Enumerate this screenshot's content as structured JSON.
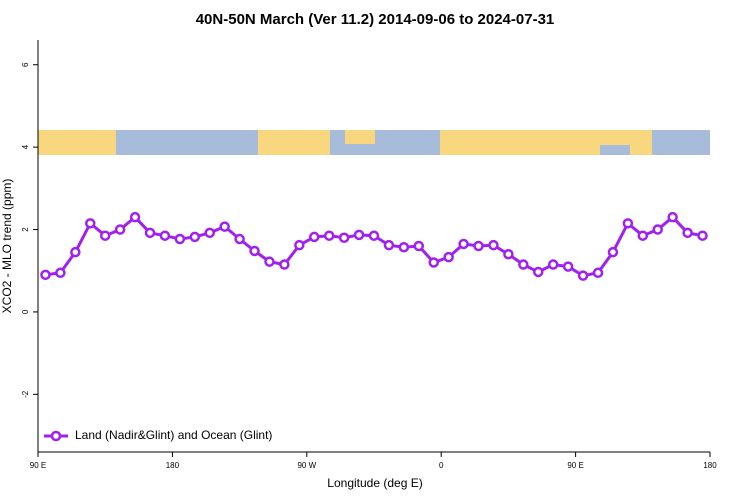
{
  "chart_data": {
    "type": "line",
    "title": "40N-50N March (Ver 11.2)   2014-09-06 to 2024-07-31",
    "x_label": "Longitude (deg E)",
    "y_label": "XCO2 - MLO trend (ppm)",
    "x": [
      95,
      105,
      115,
      125,
      135,
      145,
      155,
      165,
      175,
      185,
      195,
      205,
      215,
      225,
      235,
      245,
      255,
      265,
      275,
      285,
      295,
      305,
      315,
      325,
      335,
      345,
      355,
      365,
      375,
      385,
      395,
      405,
      415,
      425,
      435,
      445,
      455,
      465,
      475,
      485,
      495,
      505,
      515,
      525,
      535
    ],
    "series": [
      {
        "name": "Land (Nadir&Glint) and Ocean (Glint)",
        "color": "#a020f0",
        "values": [
          0.9,
          0.95,
          1.45,
          2.15,
          1.85,
          2.0,
          2.3,
          1.92,
          1.85,
          1.77,
          1.82,
          1.92,
          2.07,
          1.77,
          1.48,
          1.22,
          1.15,
          1.62,
          1.82,
          1.85,
          1.8,
          1.87,
          1.85,
          1.62,
          1.57,
          1.6,
          1.2,
          1.33,
          1.65,
          1.6,
          1.62,
          1.4,
          1.15,
          0.97,
          1.15,
          1.1,
          0.88,
          0.95,
          1.45,
          2.15,
          1.85,
          2.0,
          2.3,
          1.92,
          1.85
        ]
      }
    ],
    "xlim": [
      90,
      540
    ],
    "xticks": [
      {
        "value": 90,
        "label": "90 E"
      },
      180,
      {
        "value": 270,
        "label": "90 W"
      },
      {
        "value": 360,
        "label": "0"
      },
      {
        "value": 450,
        "label": "90 E"
      },
      {
        "value": 540,
        "label": "180"
      }
    ],
    "ylim": [
      -3.4,
      6.6
    ],
    "yticks": [
      -2,
      0,
      2,
      4,
      6
    ],
    "legend": "bottom-left"
  }
}
